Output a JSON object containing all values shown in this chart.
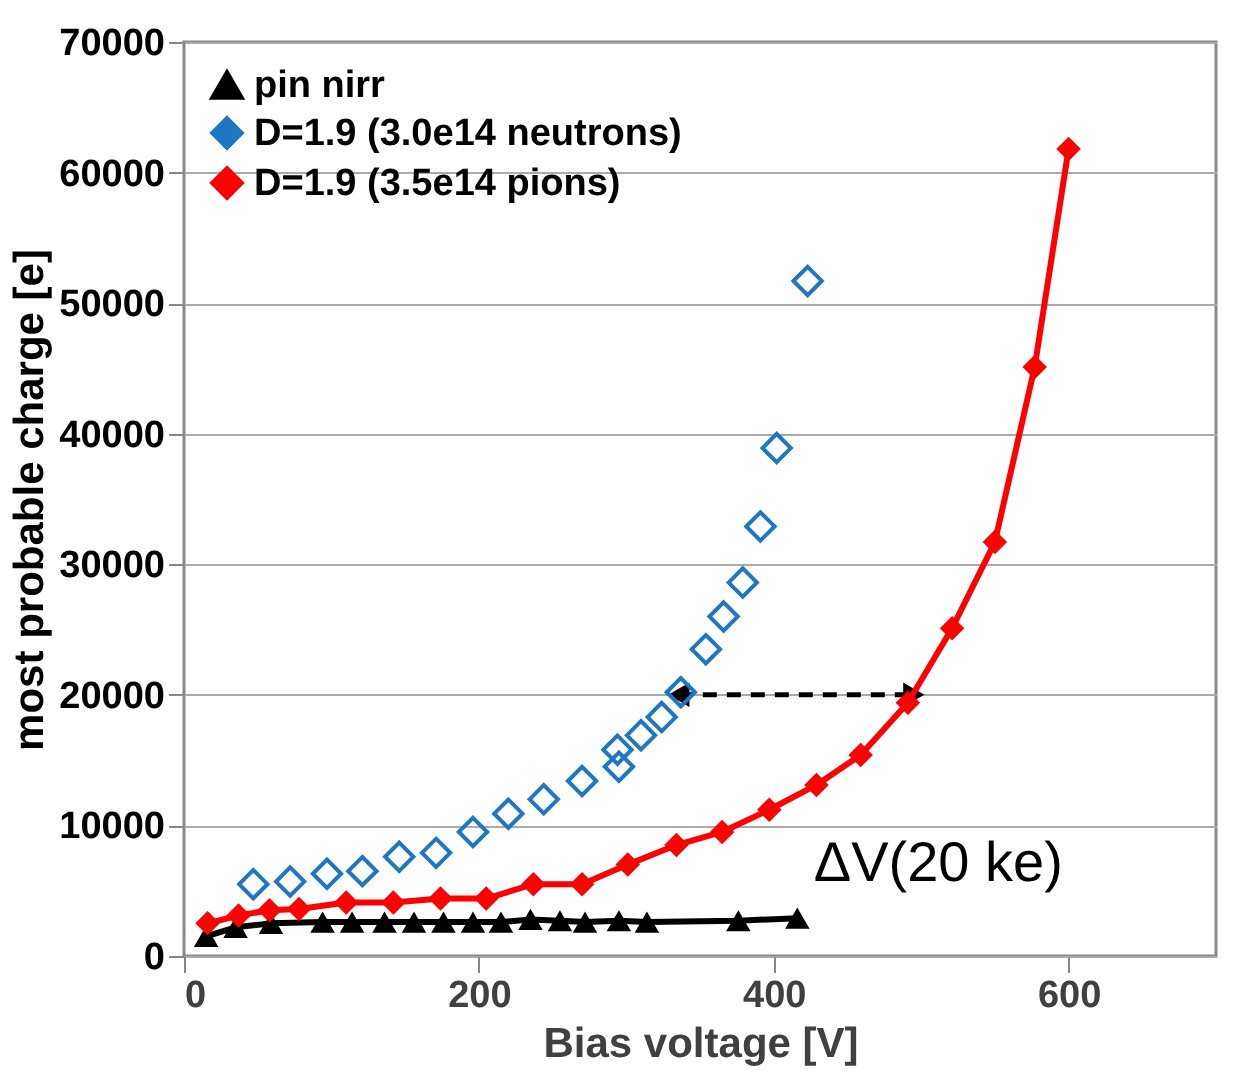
{
  "chart_data": {
    "type": "line",
    "xlabel": "Bias voltage [V]",
    "ylabel": "most probable charge [e]",
    "xlim": [
      0,
      700
    ],
    "xticks": [
      0,
      200,
      400,
      600
    ],
    "ylim": [
      0,
      70000
    ],
    "yticks": [
      0,
      10000,
      20000,
      30000,
      40000,
      50000,
      60000,
      70000
    ],
    "grid": "y",
    "legend": "top left",
    "series": [
      {
        "name": "pin nirr",
        "type": "line",
        "marker": "triangle",
        "color": "#000000",
        "x": [
          15,
          35,
          59,
          94,
          114,
          136,
          156,
          176,
          196,
          215,
          235,
          255,
          272,
          295,
          314,
          376,
          416
        ],
        "values": [
          1500,
          2200,
          2500,
          2600,
          2600,
          2600,
          2600,
          2600,
          2600,
          2600,
          2800,
          2700,
          2600,
          2700,
          2600,
          2700,
          2900
        ]
      },
      {
        "name": "D=1.9 (3.0e14 neutrons)",
        "type": "scatter",
        "marker": "diamond",
        "color": "#1f77c4",
        "x": [
          47,
          72,
          97,
          121,
          146,
          171,
          196,
          220,
          244,
          270,
          294,
          295,
          310,
          324,
          337,
          354,
          366,
          379,
          391,
          402,
          423
        ],
        "values": [
          5500,
          5700,
          6300,
          6500,
          7600,
          7900,
          9500,
          10900,
          12000,
          13400,
          15800,
          14500,
          16900,
          18300,
          20200,
          23500,
          26000,
          28600,
          32900,
          38900,
          51700
        ]
      },
      {
        "name": "D=1.9 (3.5e14 pions)",
        "type": "line",
        "marker": "diamond",
        "color": "#ff0000",
        "x": [
          16,
          37,
          58,
          78,
          110,
          142,
          174,
          205,
          237,
          270,
          301,
          334,
          365,
          397,
          429,
          459,
          491,
          521,
          550,
          577,
          600
        ],
        "values": [
          2500,
          3100,
          3500,
          3600,
          4100,
          4100,
          4400,
          4400,
          5500,
          5500,
          7000,
          8500,
          9500,
          11200,
          13100,
          15400,
          19400,
          25100,
          31700,
          45100,
          61800
        ]
      }
    ],
    "annotations": [
      {
        "text": "ΔV(20 ke)",
        "x": 495,
        "y": 20000
      }
    ]
  }
}
